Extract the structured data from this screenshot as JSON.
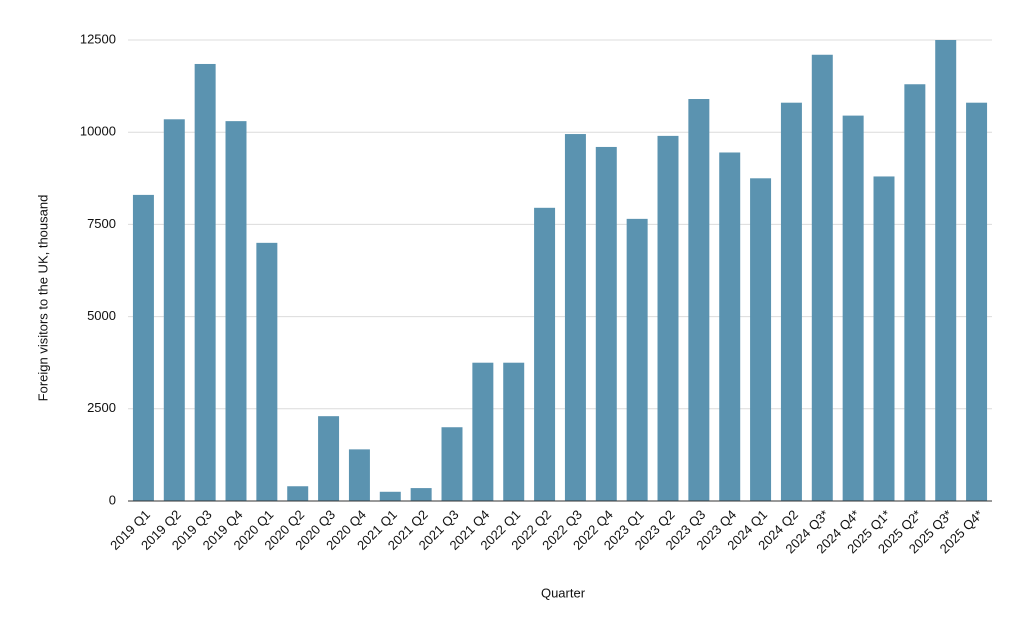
{
  "chart_data": {
    "type": "bar",
    "y_label": "Foreign visitors to the UK, thousand",
    "x_label": "Quarter",
    "categories": [
      "2019 Q1",
      "2019 Q2",
      "2019 Q3",
      "2019 Q4",
      "2020 Q1",
      "2020 Q2",
      "2020 Q3",
      "2020 Q4",
      "2021 Q1",
      "2021 Q2",
      "2021 Q3",
      "2021 Q4",
      "2022 Q1",
      "2022 Q2",
      "2022 Q3",
      "2022 Q4",
      "2023 Q1",
      "2023 Q2",
      "2023 Q3",
      "2023 Q4",
      "2024 Q1",
      "2024 Q2",
      "2024 Q3*",
      "2024 Q4*",
      "2025 Q1*",
      "2025 Q2*",
      "2025 Q3*",
      "2025 Q4*"
    ],
    "values": [
      8300,
      10350,
      11850,
      10300,
      7000,
      400,
      2300,
      1400,
      250,
      350,
      2000,
      3750,
      3750,
      7950,
      9950,
      9600,
      7650,
      9900,
      10900,
      9450,
      8750,
      10800,
      12100,
      10450,
      8800,
      11300,
      12500,
      10800
    ],
    "color": "#5b93b0",
    "ylim": [
      0,
      12500
    ],
    "yticks": [
      0,
      2500,
      5000,
      7500,
      10000,
      12500
    ],
    "grid": true
  }
}
